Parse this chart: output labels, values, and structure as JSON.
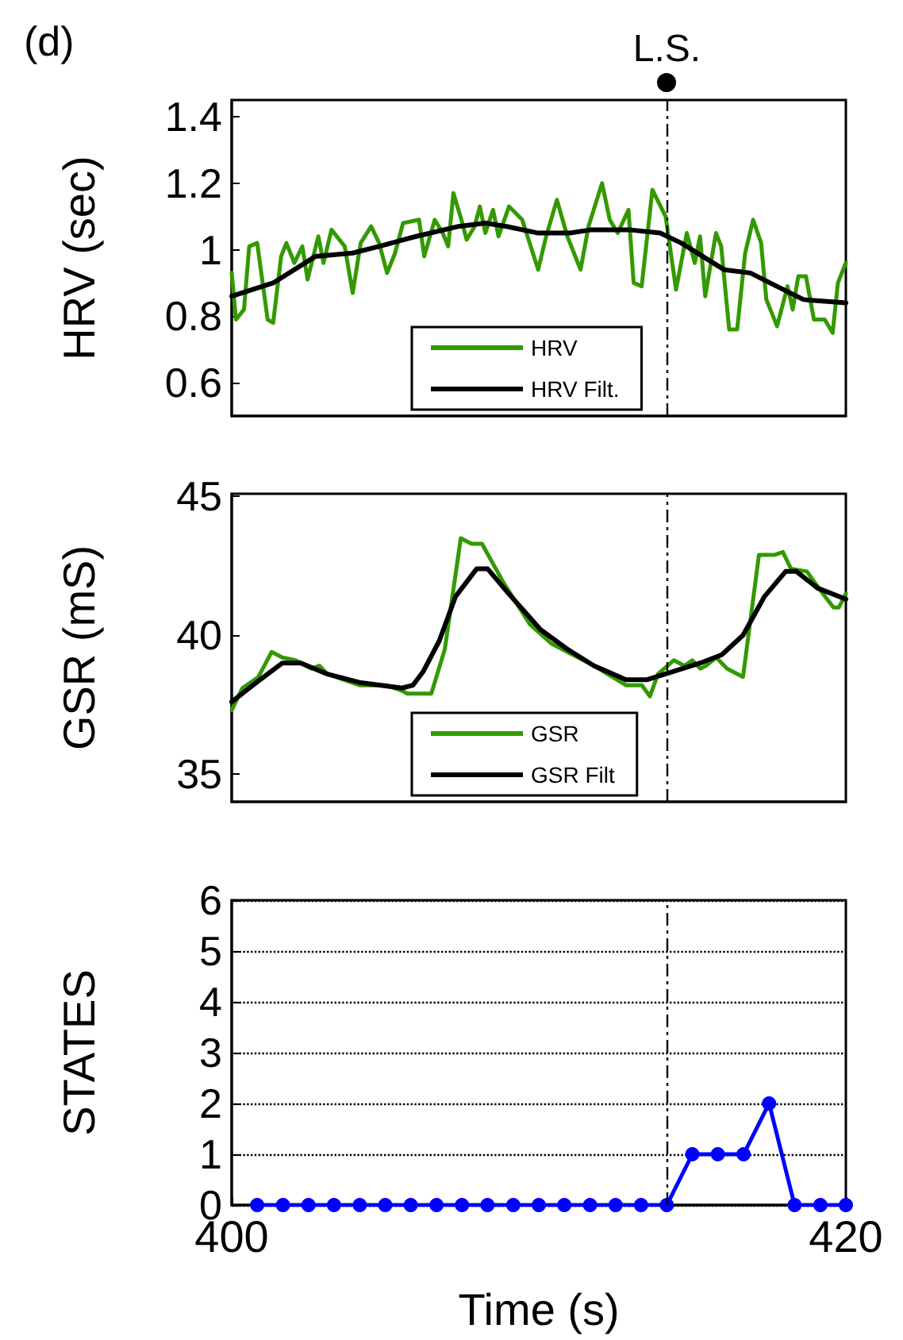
{
  "chart_data": [
    {
      "type": "line",
      "title": "(d)",
      "ylabel": "HRV (sec)",
      "xlim": [
        400,
        420
      ],
      "ylim": [
        0.5,
        1.45
      ],
      "yticks": [
        0.6,
        0.8,
        1,
        1.2,
        1.4
      ],
      "tick_labels": "y",
      "legend": "bottom",
      "grid": false,
      "line_style": "solid",
      "ref_lines": [
        {
          "axis": "x",
          "value": 414.17,
          "label": "L.S.",
          "line_style": "dashed",
          "color": "#000000"
        }
      ],
      "series": [
        {
          "name": "HRV",
          "color": "#339900",
          "x": [
            400,
            400.14,
            400.4,
            400.57,
            400.83,
            401.17,
            401.35,
            401.61,
            401.78,
            402.04,
            402.3,
            402.47,
            402.82,
            402.99,
            403.25,
            403.68,
            403.94,
            404.2,
            404.54,
            404.8,
            405.06,
            405.32,
            405.58,
            406.1,
            406.27,
            406.61,
            406.87,
            407.05,
            407.22,
            407.48,
            407.65,
            407.91,
            408.08,
            408.26,
            408.51,
            408.69,
            409.03,
            409.46,
            409.98,
            410.24,
            410.59,
            410.93,
            411.36,
            411.62,
            412.06,
            412.31,
            412.57,
            412.92,
            413.09,
            413.35,
            413.7,
            414.13,
            414.47,
            414.82,
            415.08,
            415.25,
            415.42,
            415.77,
            415.94,
            416.2,
            416.46,
            416.72,
            416.98,
            417.24,
            417.41,
            417.76,
            418.1,
            418.27,
            418.45,
            418.7,
            418.96,
            419.31,
            419.57,
            419.74,
            420
          ],
          "values": [
            0.93,
            0.79,
            0.82,
            1.01,
            1.02,
            0.79,
            0.78,
            0.98,
            1.02,
            0.96,
            1.01,
            0.91,
            1.04,
            0.96,
            1.06,
            1.01,
            0.87,
            1.02,
            1.07,
            1.02,
            0.93,
            0.99,
            1.08,
            1.09,
            0.98,
            1.09,
            1.05,
            1.01,
            1.17,
            1.09,
            1.03,
            1.07,
            1.13,
            1.05,
            1.12,
            1.04,
            1.13,
            1.09,
            0.94,
            1.04,
            1.15,
            1.04,
            0.94,
            1.07,
            1.2,
            1.09,
            1.05,
            1.12,
            0.9,
            0.89,
            1.18,
            1.1,
            0.88,
            1.05,
            0.96,
            1.04,
            0.86,
            1.05,
            1.01,
            0.76,
            0.76,
            0.99,
            1.09,
            1.02,
            0.85,
            0.77,
            0.89,
            0.82,
            0.92,
            0.92,
            0.79,
            0.79,
            0.75,
            0.9,
            0.96
          ]
        },
        {
          "name": "HRV Filt.",
          "color": "#000000",
          "x": [
            400,
            401.35,
            402.73,
            403.94,
            404.8,
            406.01,
            407.39,
            408.26,
            408.95,
            409.98,
            411.02,
            411.71,
            412.92,
            413.95,
            414.64,
            416.03,
            416.89,
            417.75,
            418.62,
            420
          ],
          "values": [
            0.86,
            0.9,
            0.98,
            0.99,
            1.01,
            1.04,
            1.07,
            1.08,
            1.07,
            1.05,
            1.05,
            1.06,
            1.06,
            1.05,
            1.02,
            0.94,
            0.93,
            0.89,
            0.85,
            0.84
          ]
        }
      ]
    },
    {
      "type": "line",
      "ylabel": "GSR (mS)",
      "xlim": [
        400,
        420
      ],
      "ylim": [
        34,
        45.1
      ],
      "yticks": [
        35,
        40,
        45
      ],
      "tick_labels": "y",
      "legend": "bottom",
      "grid": false,
      "line_style": "solid",
      "ref_lines": [
        {
          "axis": "x",
          "value": 414.17,
          "line_style": "dashed",
          "color": "#000000"
        }
      ],
      "series": [
        {
          "name": "GSR",
          "color": "#339900",
          "x": [
            400,
            400.35,
            400.87,
            401.3,
            401.65,
            402.08,
            402.6,
            402.86,
            403.12,
            404.16,
            405.03,
            405.55,
            405.72,
            406.5,
            406.94,
            407.46,
            407.81,
            408.15,
            408.85,
            409.71,
            410.41,
            411.8,
            412.84,
            413.36,
            413.62,
            413.88,
            414.4,
            414.74,
            415,
            415.26,
            415.44,
            415.78,
            416.13,
            416.65,
            417.17,
            417.69,
            417.95,
            418.21,
            418.73,
            419.25,
            419.6,
            419.77,
            420
          ],
          "values": [
            37.3,
            38.1,
            38.5,
            39.4,
            39.2,
            39.1,
            38.8,
            38.9,
            38.6,
            38.2,
            38.2,
            38,
            37.9,
            37.9,
            39.5,
            43.5,
            43.3,
            43.3,
            41.9,
            40.4,
            39.7,
            38.9,
            38.2,
            38.2,
            37.8,
            38.6,
            39.1,
            38.9,
            39.1,
            38.8,
            38.9,
            39.2,
            38.8,
            38.5,
            42.9,
            42.9,
            43,
            42.4,
            42.3,
            41.5,
            41,
            41,
            41.5
          ]
        },
        {
          "name": "GSR Filt",
          "color": "#000000",
          "x": [
            400,
            400.69,
            401.65,
            402.25,
            403.12,
            404.16,
            405.55,
            405.9,
            406.24,
            406.76,
            407.29,
            407.98,
            408.33,
            409.02,
            410.06,
            410.93,
            411.8,
            412.84,
            413.53,
            414.4,
            415.26,
            415.96,
            416.65,
            417.35,
            418.04,
            418.39,
            419.08,
            420
          ],
          "values": [
            37.6,
            38.2,
            39,
            39,
            38.6,
            38.3,
            38.1,
            38.2,
            38.7,
            39.8,
            41.4,
            42.4,
            42.4,
            41.5,
            40.2,
            39.5,
            38.9,
            38.4,
            38.4,
            38.7,
            39,
            39.3,
            40,
            41.4,
            42.3,
            42.3,
            41.7,
            41.3
          ]
        }
      ]
    },
    {
      "type": "line",
      "ylabel": "STATES",
      "xlabel": "Time (s)",
      "xlim": [
        400,
        420
      ],
      "xticks": [
        400,
        420
      ],
      "ylim": [
        0,
        6
      ],
      "yticks": [
        0,
        1,
        2,
        3,
        4,
        5,
        6
      ],
      "grid": "y",
      "marker": "circle",
      "line_style": "solid",
      "ref_lines": [
        {
          "axis": "x",
          "value": 414.17,
          "line_style": "dashed",
          "color": "#000000"
        }
      ],
      "series": [
        {
          "color": "#0000ff",
          "x": [
            400.83,
            401.67,
            402.5,
            403.33,
            404.17,
            405,
            405.83,
            406.67,
            407.5,
            408.33,
            409.17,
            410,
            410.83,
            411.67,
            412.5,
            413.33,
            414.17,
            415,
            415.83,
            416.67,
            417.5,
            418.33,
            419.17,
            420
          ],
          "values": [
            0,
            0,
            0,
            0,
            0,
            0,
            0,
            0,
            0,
            0,
            0,
            0,
            0,
            0,
            0,
            0,
            0,
            1,
            1,
            1,
            2,
            0,
            0,
            0
          ]
        }
      ]
    }
  ]
}
